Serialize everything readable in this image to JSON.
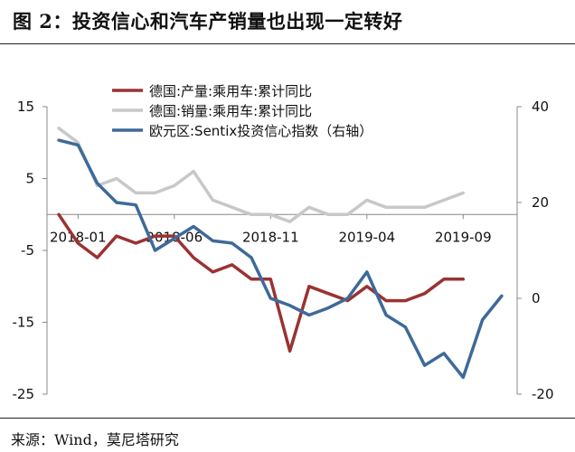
{
  "title": "图 2：投资信心和汽车产销量也出现一定转好",
  "source": "来源：Wind，莫尼塔研究",
  "colors": {
    "production": "#9B3232",
    "sales": "#C8C8C8",
    "sentix": "#3E6A99",
    "axis": "#888888"
  },
  "chart_data": {
    "type": "line",
    "title": "图 2：投资信心和汽车产销量也出现一定转好",
    "x_labels": [
      "2018-01",
      "2018-06",
      "2018-11",
      "2019-04",
      "2019-09"
    ],
    "x": [
      "2017-12",
      "2018-01",
      "2018-02",
      "2018-03",
      "2018-04",
      "2018-05",
      "2018-06",
      "2018-07",
      "2018-08",
      "2018-09",
      "2018-10",
      "2018-11",
      "2018-12",
      "2019-01",
      "2019-02",
      "2019-03",
      "2019-04",
      "2019-05",
      "2019-06",
      "2019-07",
      "2019-08",
      "2019-09",
      "2019-10",
      "2019-11",
      "2019-12"
    ],
    "left_axis": {
      "min": -25,
      "max": 15,
      "ticks": [
        "15",
        "5",
        "-5",
        "-15",
        "-25"
      ]
    },
    "right_axis": {
      "min": -20,
      "max": 40,
      "ticks": [
        "40",
        "20",
        "0",
        "-20"
      ]
    },
    "legend_position": "top",
    "series": [
      {
        "name": "德国:产量:乘用车:累计同比",
        "axis": "left",
        "color": "#9B3232",
        "values": [
          0,
          -4,
          -6,
          -3,
          -4,
          -3,
          -3,
          -6,
          -8,
          -7,
          -9,
          -9,
          -19,
          -10,
          -11,
          -12,
          -10,
          -12,
          -12,
          -11,
          -9,
          -9,
          null,
          null,
          null
        ]
      },
      {
        "name": "德国:销量:乘用车:累计同比",
        "axis": "left",
        "color": "#C8C8C8",
        "values": [
          12,
          10,
          4,
          5,
          3,
          3,
          4,
          6,
          2,
          1,
          0,
          0,
          -1,
          1,
          0,
          0,
          2,
          1,
          1,
          1,
          2,
          3,
          null,
          null,
          null
        ]
      },
      {
        "name": "欧元区:Sentix投资信心指数（右轴）",
        "axis": "right",
        "color": "#3E6A99",
        "values": [
          33,
          32,
          24,
          20,
          19.5,
          10,
          12.5,
          15,
          12,
          11.5,
          8.5,
          0,
          -1.5,
          -3.5,
          -2,
          0,
          5.5,
          -3.5,
          -6,
          -14,
          -11.5,
          -16.5,
          -4.5,
          0.5,
          null
        ]
      }
    ]
  }
}
